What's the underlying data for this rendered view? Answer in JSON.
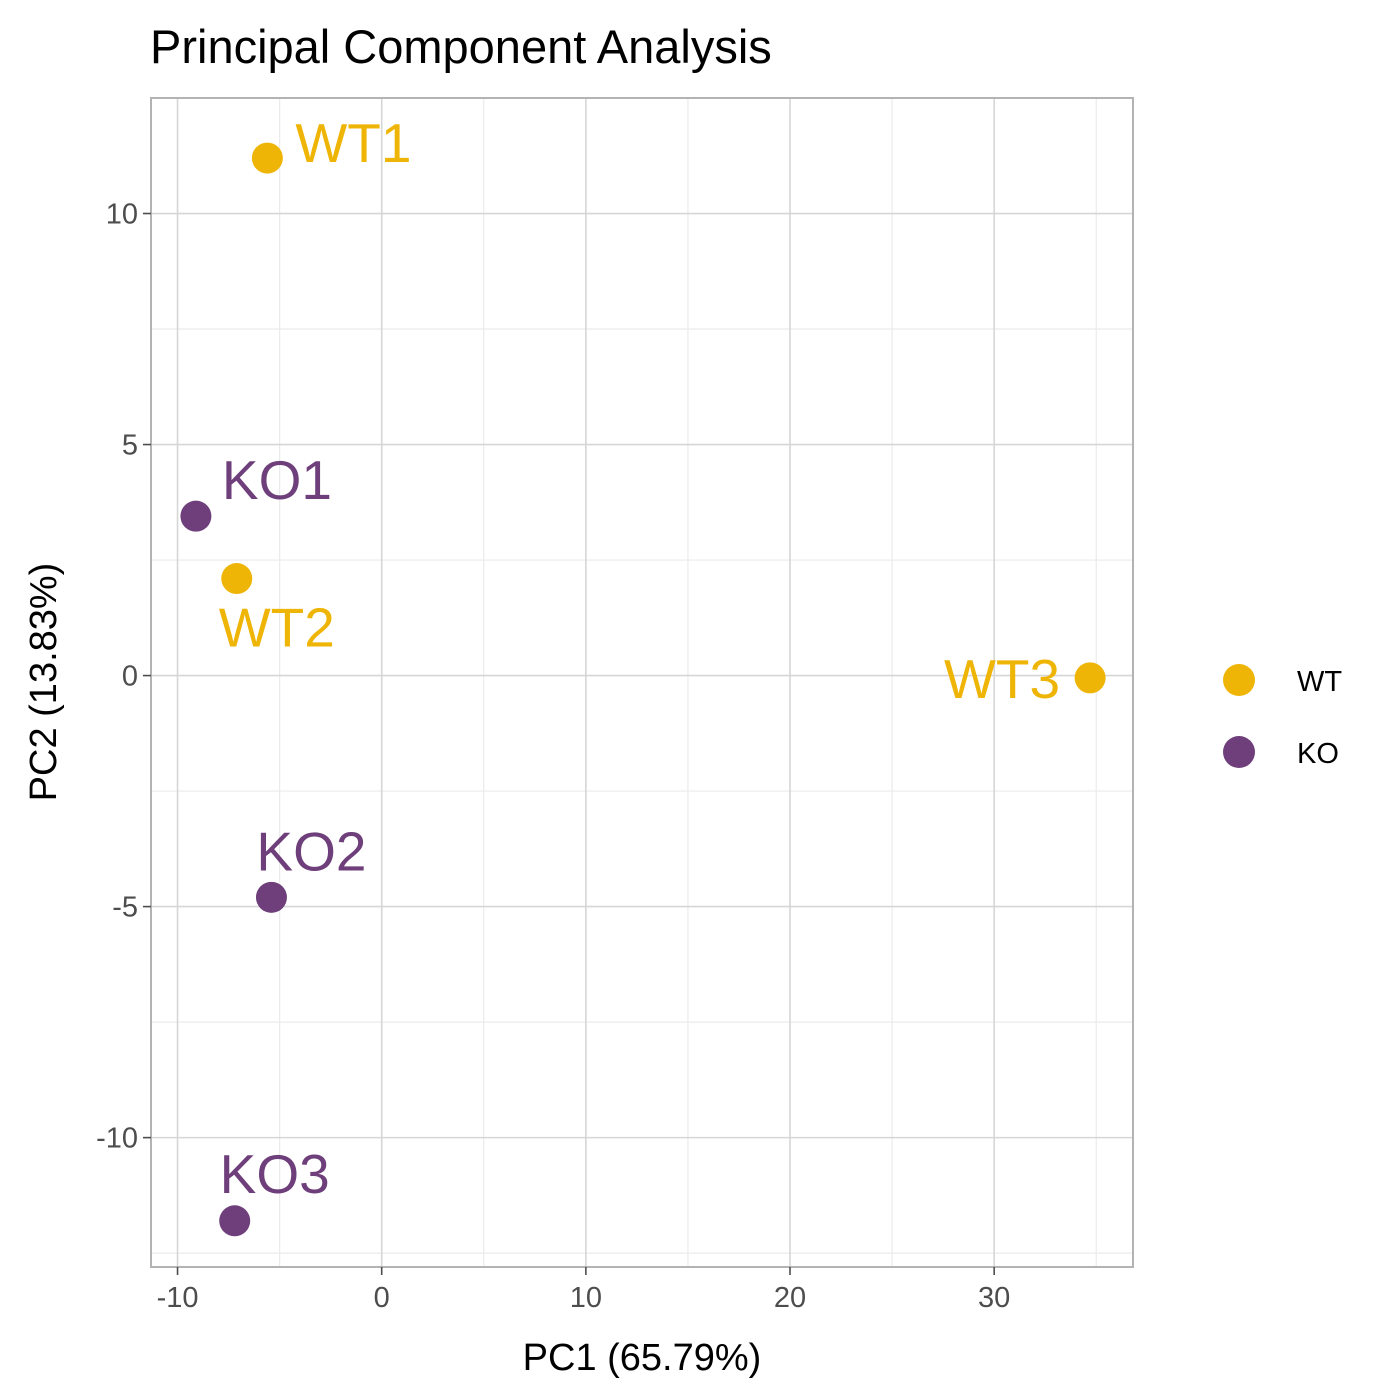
{
  "chart_data": {
    "type": "scatter",
    "title": "Principal Component Analysis",
    "xlabel": "PC1 (65.79%)",
    "ylabel": "PC2 (13.83%)",
    "xlim": [
      -11.3,
      36.8
    ],
    "ylim": [
      -12.8,
      12.5
    ],
    "x_ticks": [
      -10,
      0,
      10,
      20,
      30
    ],
    "x_tick_labels": [
      "-10",
      "0",
      "10",
      "20",
      "30"
    ],
    "y_ticks": [
      -10,
      -5,
      0,
      5,
      10
    ],
    "y_tick_labels": [
      "-10",
      "-5",
      "0",
      "5",
      "10"
    ],
    "grid": true,
    "legend_position": "right",
    "series": [
      {
        "name": "WT",
        "color": "#EFB506",
        "points": [
          {
            "label": "WT1",
            "x": -5.6,
            "y": 11.2
          },
          {
            "label": "WT2",
            "x": -7.1,
            "y": 2.1
          },
          {
            "label": "WT3",
            "x": 34.7,
            "y": -0.05
          }
        ]
      },
      {
        "name": "KO",
        "color": "#6E3F7B",
        "points": [
          {
            "label": "KO1",
            "x": -9.1,
            "y": 3.45
          },
          {
            "label": "KO2",
            "x": -5.4,
            "y": -4.8
          },
          {
            "label": "KO3",
            "x": -7.2,
            "y": -11.8
          }
        ]
      }
    ]
  }
}
